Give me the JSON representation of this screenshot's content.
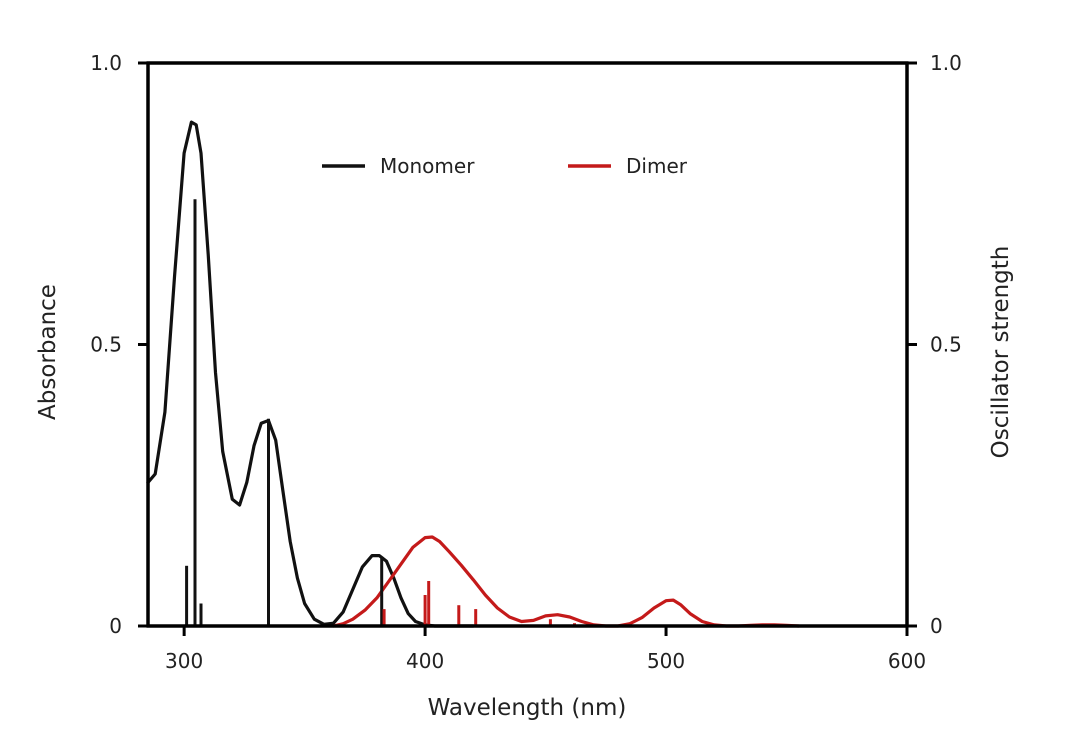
{
  "chart_data": {
    "type": "line",
    "title": "",
    "xlabel": "Wavelength (nm)",
    "ylabel": "Absorbance",
    "y2label": "Oscillator strength",
    "xlim": [
      285,
      600
    ],
    "ylim": [
      0,
      1.0
    ],
    "y2lim": [
      0,
      1.0
    ],
    "x_ticks": [
      {
        "value": 300,
        "label": "300"
      },
      {
        "value": 400,
        "label": "400"
      },
      {
        "value": 500,
        "label": "500"
      },
      {
        "value": 600,
        "label": "600"
      }
    ],
    "y_ticks": [
      {
        "value": 0,
        "label": "0"
      },
      {
        "value": 0.5,
        "label": "0.5"
      },
      {
        "value": 1.0,
        "label": "1.0"
      }
    ],
    "y2_ticks": [
      {
        "value": 0,
        "label": "0"
      },
      {
        "value": 0.5,
        "label": "0.5"
      },
      {
        "value": 1.0,
        "label": "1.0"
      }
    ],
    "grid": false,
    "legend_position": "top-center",
    "series": [
      {
        "name": "Monomer",
        "color": "#111111",
        "x": [
          285,
          288,
          292,
          296,
          300,
          303,
          305,
          307,
          310,
          313,
          316,
          320,
          323,
          326,
          329,
          332,
          335,
          338,
          341,
          344,
          347,
          350,
          354,
          358,
          362,
          366,
          370,
          374,
          378,
          381,
          384,
          387,
          390,
          393,
          396,
          400,
          404,
          408,
          413,
          420
        ],
        "y": [
          0.255,
          0.27,
          0.38,
          0.62,
          0.84,
          0.895,
          0.89,
          0.84,
          0.66,
          0.45,
          0.31,
          0.225,
          0.215,
          0.255,
          0.32,
          0.36,
          0.365,
          0.33,
          0.24,
          0.15,
          0.085,
          0.04,
          0.012,
          0.003,
          0.005,
          0.025,
          0.065,
          0.105,
          0.125,
          0.125,
          0.115,
          0.085,
          0.05,
          0.022,
          0.008,
          0.002,
          0.0,
          0.0,
          0.0,
          0.0
        ]
      },
      {
        "name": "Dimer",
        "color": "#c41a1a",
        "x": [
          362,
          366,
          370,
          375,
          380,
          385,
          390,
          395,
          400,
          403,
          406,
          410,
          415,
          420,
          425,
          430,
          435,
          440,
          445,
          450,
          455,
          460,
          465,
          470,
          475,
          480,
          485,
          490,
          495,
          500,
          503,
          506,
          510,
          515,
          520,
          525,
          530,
          535,
          540,
          545,
          550,
          555
        ],
        "y": [
          0.0,
          0.004,
          0.012,
          0.028,
          0.05,
          0.08,
          0.11,
          0.14,
          0.157,
          0.158,
          0.15,
          0.132,
          0.108,
          0.082,
          0.055,
          0.032,
          0.016,
          0.008,
          0.01,
          0.018,
          0.02,
          0.016,
          0.008,
          0.002,
          0.0,
          0.0,
          0.004,
          0.015,
          0.032,
          0.045,
          0.046,
          0.038,
          0.022,
          0.008,
          0.002,
          0.0,
          0.0,
          0.001,
          0.002,
          0.002,
          0.001,
          0.0
        ]
      }
    ],
    "oscillator_sticks": [
      {
        "series": "Monomer",
        "x": [
          301,
          304.5,
          307,
          335,
          382
        ],
        "f": [
          0.107,
          0.758,
          0.04,
          0.368,
          0.123
        ]
      },
      {
        "series": "Dimer",
        "x": [
          383,
          400,
          401.5,
          414,
          421,
          452,
          462
        ],
        "f": [
          0.03,
          0.055,
          0.08,
          0.037,
          0.03,
          0.012,
          0.005
        ]
      }
    ]
  }
}
